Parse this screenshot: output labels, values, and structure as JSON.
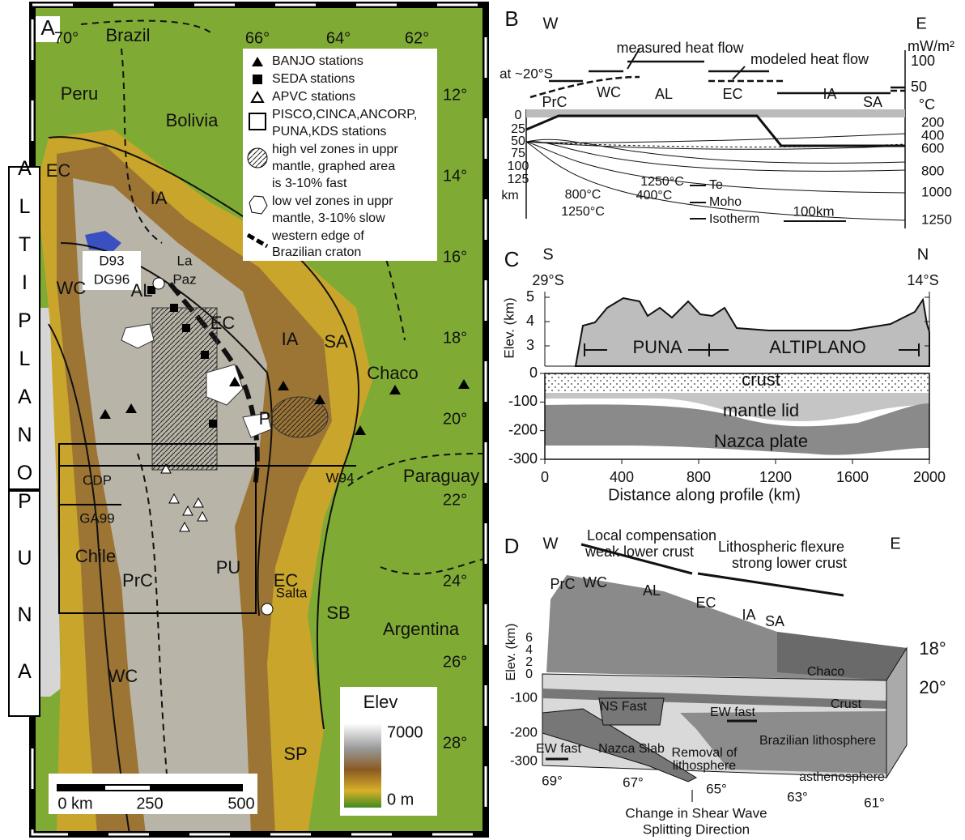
{
  "panel_a": {
    "label": "A",
    "side_labels": [
      "ALTIPLANO",
      "PUNA"
    ],
    "longitudes": [
      "70°",
      "66°",
      "64°",
      "62°"
    ],
    "latitudes": [
      "12°",
      "14°",
      "16°",
      "18°",
      "20°",
      "22°",
      "24°",
      "26°",
      "28°"
    ],
    "countries": [
      "Brazil",
      "Peru",
      "Bolivia",
      "Chaco",
      "Paraguay",
      "Chile",
      "Argentina"
    ],
    "la_paz": [
      "La",
      "Paz"
    ],
    "salta": "Salta",
    "provinces": [
      "EC",
      "IA",
      "WC",
      "AL",
      "EC",
      "IA",
      "SA",
      "P",
      "PrC",
      "PU",
      "EC",
      "SB",
      "SP",
      "WC"
    ],
    "profiles": [
      "D93",
      "DG96",
      "CDP",
      "GA99",
      "W94"
    ],
    "legend": [
      [
        "BANJO stations"
      ],
      [
        "SEDA stations"
      ],
      [
        "APVC stations"
      ],
      [
        "PISCO,CINCA,ANCORP,",
        "PUNA,KDS stations"
      ],
      [
        "high vel zones in uppr",
        "mantle, graphed area",
        "is 3-10% fast"
      ],
      [
        "low vel zones in uppr",
        "mantle, 3-10% slow"
      ],
      [
        "western edge of",
        "Brazilian craton"
      ]
    ],
    "elevation_bar": {
      "title": "Elev",
      "max": 7000,
      "min": "0 m"
    },
    "scale_bar": [
      "0 km",
      "250",
      "500"
    ]
  },
  "panel_b": {
    "label": "B",
    "west": "W",
    "east": "E",
    "latitude": "at ~20°S",
    "heat_flow_unit": "mW/m²",
    "heat_flow_ticks": [
      100,
      50
    ],
    "temp_unit": "°C",
    "temp_ticks": [
      200,
      400,
      600,
      800,
      1000,
      1250
    ],
    "annotations": [
      "measured heat flow",
      "modeled heat flow"
    ],
    "provinces": [
      "PrC",
      "WC",
      "AL",
      "EC",
      "IA",
      "SA"
    ],
    "depth_ticks": [
      0,
      25,
      50,
      75,
      100,
      125
    ],
    "depth_unit": "km",
    "isotherm_labels": [
      "1250°C",
      "400°C",
      "800°C",
      "1250°C"
    ],
    "legend": [
      "Te",
      "Moho",
      "Isotherm"
    ],
    "scale_bar": "100km"
  },
  "panel_c": {
    "label": "C",
    "south": "S",
    "north": "N",
    "south_lat": "29°S",
    "north_lat": "14°S",
    "elev_label": "Elev. (km)",
    "elev_ticks": [
      3,
      4,
      5
    ],
    "depth_ticks": [
      0,
      -100,
      -200,
      -300
    ],
    "x_ticks": [
      0,
      400,
      800,
      1200,
      1600,
      2000
    ],
    "x_label": "Distance along profile (km)",
    "regions": [
      "PUNA",
      "ALTIPLANO"
    ],
    "layers": [
      "crust",
      "mantle lid",
      "Nazca plate"
    ]
  },
  "panel_d": {
    "label": "D",
    "west": "W",
    "east": "E",
    "annotations": [
      [
        "Local compensation",
        "weak lower crust"
      ],
      [
        "Lithospheric flexure",
        "strong lower crust"
      ]
    ],
    "provinces": [
      "PrC",
      "WC",
      "AL",
      "EC",
      "IA",
      "SA"
    ],
    "elev_label": "Elev. (km)",
    "elev_ticks": [
      6,
      4,
      2,
      0
    ],
    "depth_ticks": [
      -100,
      -200,
      -300
    ],
    "latitudes": [
      "18°",
      "20°"
    ],
    "longitudes": [
      "69°",
      "67°",
      "65°",
      "63°",
      "61°"
    ],
    "features": [
      "Chaco",
      "Crust",
      "NS Fast",
      "EW fast",
      "Brazilian lithosphere",
      "EW fast",
      "Nazca Slab",
      "asthenosphere"
    ],
    "removal": [
      "Removal of",
      "lithosphere"
    ],
    "note": [
      "Change in Shear Wave",
      "Splitting Direction"
    ]
  }
}
